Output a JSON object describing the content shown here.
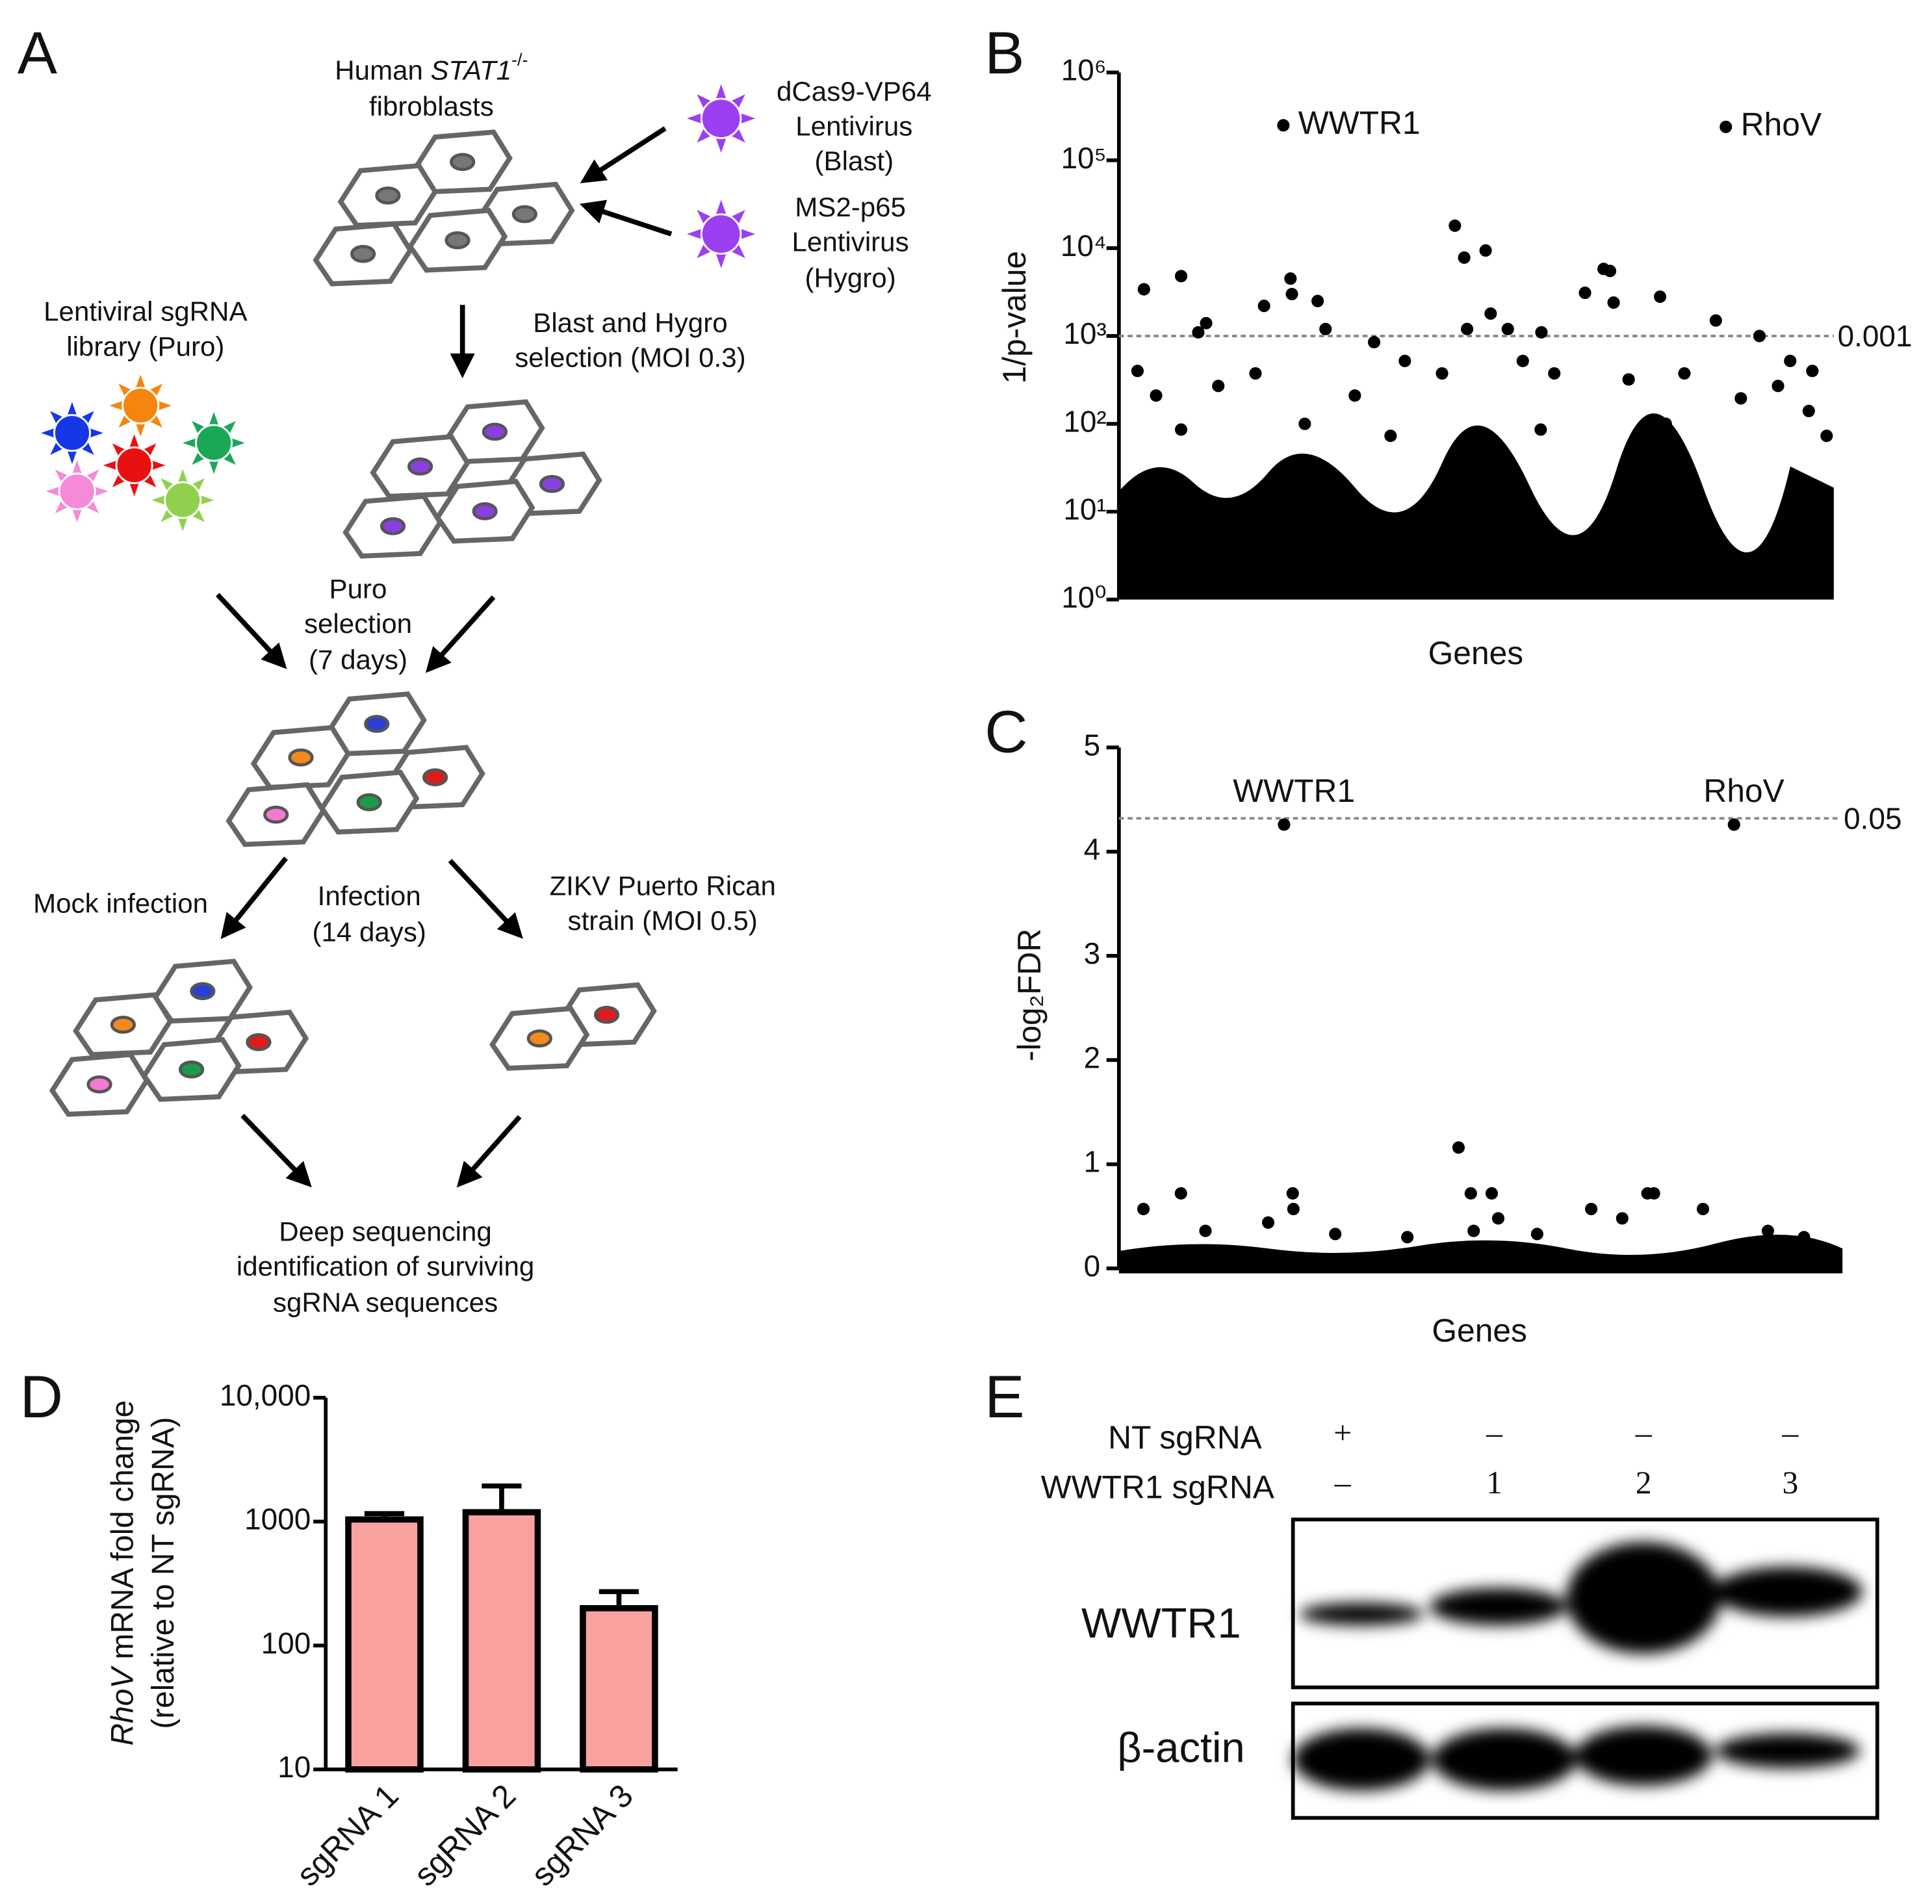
{
  "panel_labels": [
    "A",
    "B",
    "C",
    "D",
    "E"
  ],
  "diagram": {
    "fibroblasts": {
      "prefix": "Human",
      "gene": "STAT1",
      "sup": "-/-",
      "line2": "fibroblasts"
    },
    "virus1": [
      "dCas9-VP64",
      "Lentivirus",
      "(Blast)"
    ],
    "virus2": [
      "MS2-p65",
      "Lentivirus",
      "(Hygro)"
    ],
    "library": [
      "Lentiviral sgRNA",
      "library (Puro)"
    ],
    "selection1": [
      "Blast and Hygro",
      "selection (MOI 0.3)"
    ],
    "selection2": [
      "Puro",
      "selection",
      "(7 days)"
    ],
    "mock": "Mock infection",
    "infection": [
      "Infection",
      "(14 days)"
    ],
    "zikv": [
      "ZIKV Puerto Rican",
      "strain (MOI 0.5)"
    ],
    "sequencing": [
      "Deep sequencing",
      "identification of surviving",
      "sgRNA sequences"
    ]
  },
  "chart_data": [
    {
      "type": "scatter",
      "ylabel": "1/p-value",
      "xlabel": "Genes",
      "log": true,
      "color": "#000000",
      "ylim": [
        1,
        1000000
      ],
      "yticks": [
        {
          "value": 1,
          "label": "10⁰"
        },
        {
          "value": 10,
          "label": "10¹"
        },
        {
          "value": 100,
          "label": "10²"
        },
        {
          "value": 1000,
          "label": "10³"
        },
        {
          "value": 10000,
          "label": "10⁴"
        },
        {
          "value": 100000,
          "label": "10⁵"
        },
        {
          "value": 1000000,
          "label": "10⁶"
        }
      ],
      "xlim": [
        0,
        100
      ],
      "threshold": 1000,
      "threshold_label": "0.001",
      "annotations": [
        "WWTR1",
        "RhoV"
      ],
      "x": [
        23,
        84.9,
        47,
        48.3,
        51.3,
        8.7,
        3.5,
        24,
        24.2,
        20.3,
        27.8,
        67.8,
        68.7,
        65.2,
        69.2,
        75.7,
        83.5,
        52,
        54.4,
        59.1,
        89.6,
        12.2,
        11.1,
        28.9,
        48.7,
        2.6,
        97,
        93.9,
        35.7,
        5.2,
        13.9,
        19.1,
        33,
        40,
        45.2,
        56.5,
        60.9,
        71.3,
        79.1,
        87,
        92.2,
        96.5,
        8.7,
        26,
        38,
        59,
        76.5,
        99
      ],
      "y": [
        250000,
        240000,
        18000,
        7800,
        9400,
        4800,
        3400,
        4500,
        3000,
        2200,
        2500,
        5800,
        5500,
        3100,
        2400,
        2800,
        1500,
        1800,
        1200,
        1100,
        1000,
        1400,
        1100,
        1200,
        1200,
        400,
        400,
        520,
        850,
        210,
        270,
        375,
        210,
        520,
        375,
        520,
        375,
        320,
        375,
        195,
        270,
        140,
        86,
        100,
        73,
        86,
        100,
        73
      ]
    },
    {
      "type": "scatter",
      "ylabel": "-log₂FDR",
      "xlabel": "Genes",
      "log": false,
      "color": "#000000",
      "ylim": [
        0,
        5
      ],
      "yticks": [
        0,
        1,
        2,
        3,
        4,
        5
      ],
      "xlim": [
        0,
        100
      ],
      "threshold": 4.32,
      "threshold_label": "0.05",
      "annotations": [
        "WWTR1",
        "RhoV"
      ],
      "x": [
        22.9,
        85.3,
        47.1,
        24.1,
        24.2,
        48.8,
        51.7,
        8.6,
        3.4,
        73.3,
        74.2,
        65.5,
        69.8,
        81,
        52.6,
        49.2,
        20.7,
        12,
        30,
        40,
        58,
        90,
        95
      ],
      "y": [
        4.26,
        4.26,
        1.16,
        0.72,
        0.57,
        0.72,
        0.72,
        0.72,
        0.57,
        0.72,
        0.72,
        0.57,
        0.48,
        0.57,
        0.48,
        0.36,
        0.44,
        0.36,
        0.33,
        0.3,
        0.33,
        0.36,
        0.3
      ]
    },
    {
      "type": "bar",
      "ylabel": [
        "RhoV mRNA fold change",
        "(relative to NT sgRNA)"
      ],
      "log": true,
      "color": "#f8a19f",
      "categories": [
        "sgRNA 1",
        "sgRNA 2",
        "sgRNA 3"
      ],
      "values": [
        1040,
        1190,
        200
      ],
      "errors": [
        120,
        750,
        72
      ],
      "ylim": [
        10,
        10000
      ],
      "yticks": [
        10,
        100,
        1000,
        {
          "value": 10000,
          "label": "10,000"
        }
      ]
    }
  ],
  "blot": {
    "rows": [
      {
        "label": "NT sgRNA",
        "lanes": [
          "+",
          "–",
          "–",
          "–"
        ]
      },
      {
        "label": "WWTR1 sgRNA",
        "lanes": [
          "–",
          "1",
          "2",
          "3"
        ]
      }
    ],
    "bands": [
      "WWTR1",
      "β-actin"
    ]
  }
}
